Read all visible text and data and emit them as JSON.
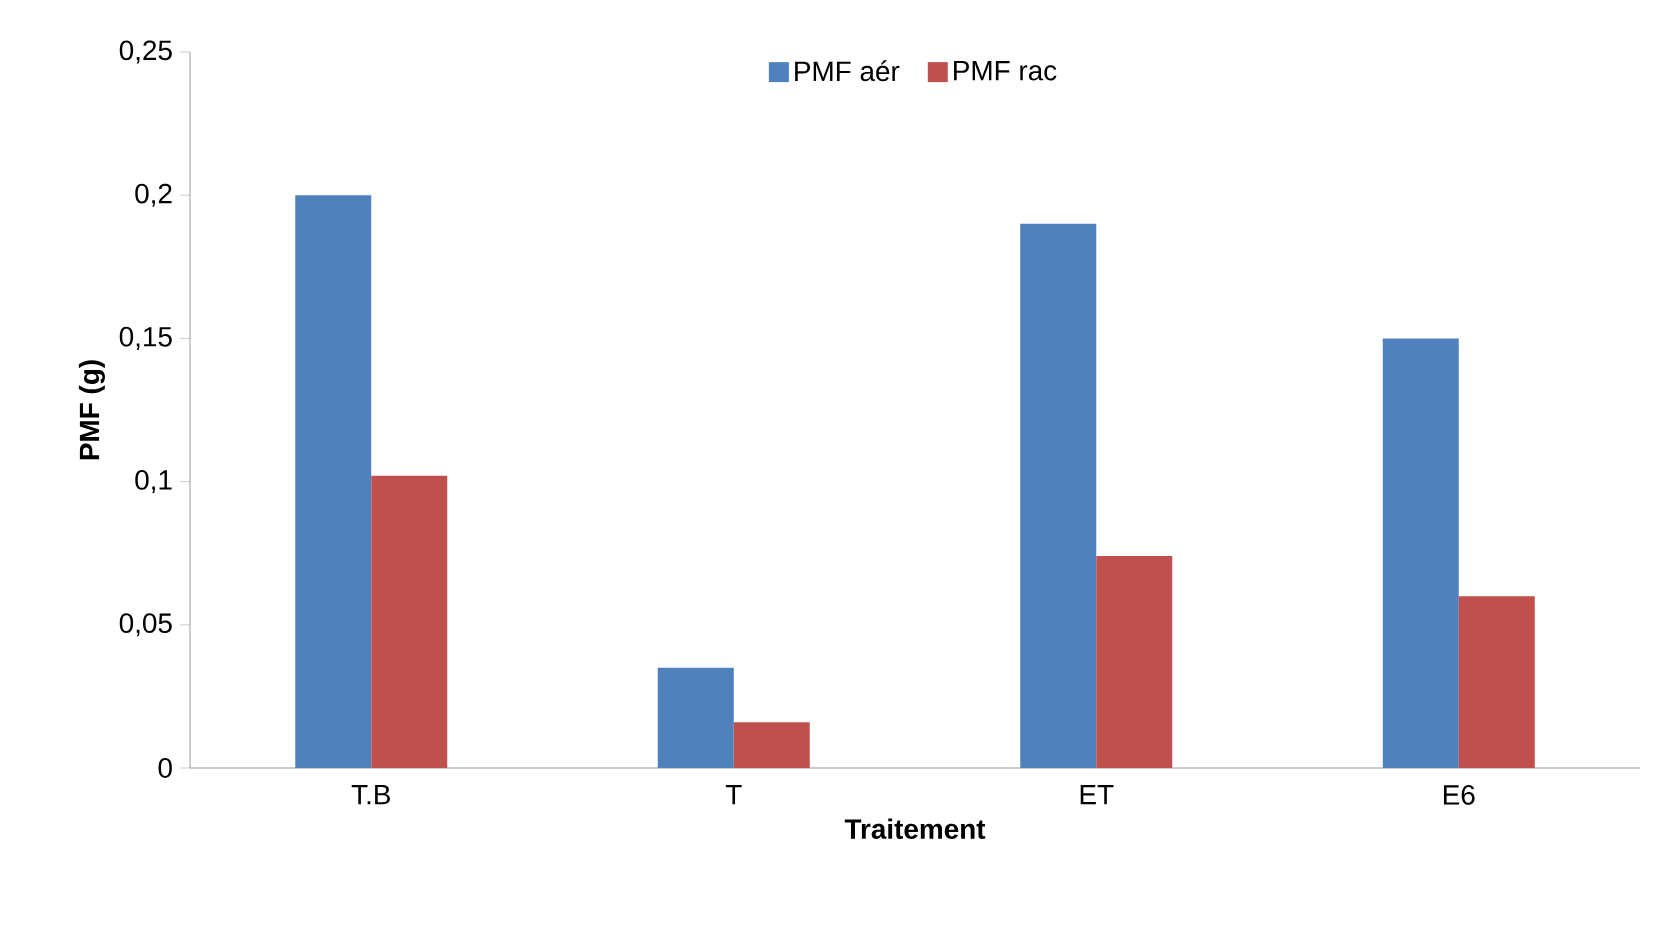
{
  "chart_data": {
    "type": "bar",
    "xlabel": "Traitement",
    "ylabel": "PMF (g)",
    "categories": [
      "T.B",
      "T",
      "ET",
      "E6"
    ],
    "series": [
      {
        "name": "PMF aér",
        "color": "#4f81bd",
        "values": [
          0.2,
          0.035,
          0.19,
          0.15
        ]
      },
      {
        "name": "PMF rac",
        "color": "#c0504d",
        "values": [
          0.102,
          0.016,
          0.074,
          0.06
        ]
      }
    ],
    "ylim": [
      0,
      0.25
    ],
    "yticks": [
      {
        "value": 0,
        "label": "0"
      },
      {
        "value": 0.05,
        "label": "0,05"
      },
      {
        "value": 0.1,
        "label": "0,1"
      },
      {
        "value": 0.15,
        "label": "0,15"
      },
      {
        "value": 0.2,
        "label": "0,2"
      },
      {
        "value": 0.25,
        "label": "0,25"
      }
    ],
    "grid": false,
    "legend": "top"
  }
}
